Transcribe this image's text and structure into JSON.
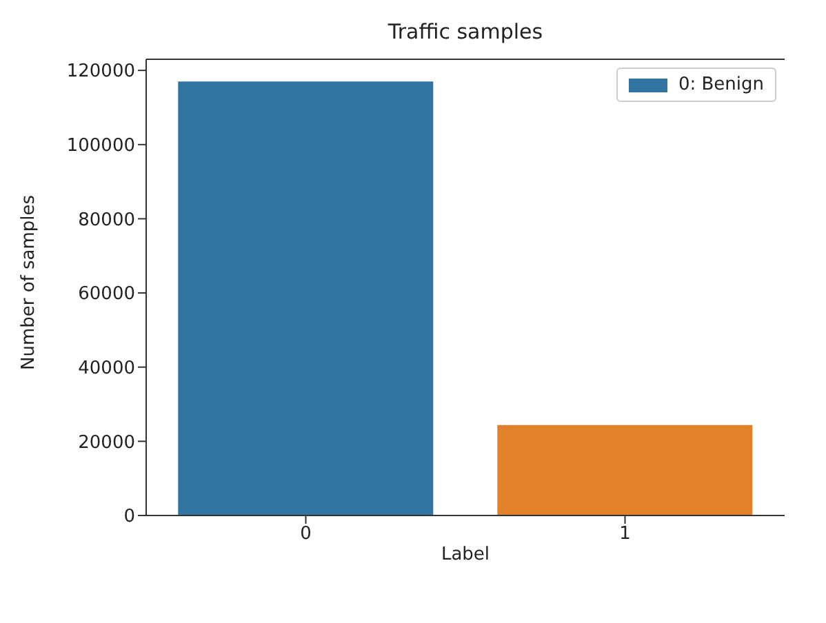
{
  "chart_data": {
    "type": "bar",
    "title": "Traffic samples",
    "xlabel": "Label",
    "ylabel": "Number of samples",
    "categories": [
      "0",
      "1"
    ],
    "series": [
      {
        "name": "0: Benign",
        "color": "#3274a1",
        "colors": [
          "#3274a1",
          "#e1812c"
        ],
        "values": [
          117000,
          24400
        ]
      }
    ],
    "ylim": [
      0,
      123000
    ],
    "yticks": [
      0,
      20000,
      40000,
      60000,
      80000,
      100000,
      120000
    ],
    "grid": false,
    "legend": "top right"
  }
}
